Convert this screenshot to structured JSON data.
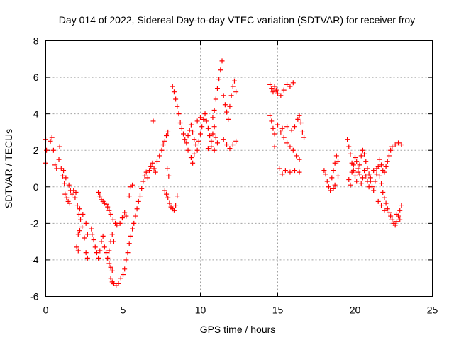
{
  "chart_data": {
    "type": "scatter",
    "title": "Day 014 of 2022, Sidereal Day-to-day VTEC variation (SDTVAR) for receiver froy",
    "xlabel": "GPS time / hours",
    "ylabel": "SDTVAR / TECUs",
    "xlim": [
      0,
      25
    ],
    "ylim": [
      -6,
      8
    ],
    "x_ticks": [
      0,
      5,
      10,
      15,
      20,
      25
    ],
    "x_tick_labels": [
      "0",
      "5",
      "10",
      "15",
      "20",
      "25"
    ],
    "y_ticks": [
      -6,
      -4,
      -2,
      0,
      2,
      4,
      6,
      8
    ],
    "y_tick_labels": [
      "-6",
      "-4",
      "-2",
      "0",
      "2",
      "4",
      "6",
      "8"
    ],
    "grid": true,
    "marker": "plus",
    "marker_color": "#ff0000",
    "series": [
      {
        "values_xy": [
          [
            0.0,
            2.6
          ],
          [
            0.0,
            1.3
          ],
          [
            0.05,
            2.0
          ],
          [
            0.3,
            2.5
          ],
          [
            0.4,
            2.7
          ],
          [
            0.5,
            2.0
          ],
          [
            0.6,
            1.2
          ],
          [
            0.7,
            1.0
          ],
          [
            0.85,
            1.5
          ],
          [
            0.9,
            2.2
          ],
          [
            1.0,
            1.0
          ],
          [
            1.1,
            0.6
          ],
          [
            1.2,
            0.2
          ],
          [
            1.25,
            -0.4
          ],
          [
            1.35,
            -0.6
          ],
          [
            1.45,
            -0.8
          ],
          [
            1.55,
            -0.9
          ],
          [
            1.7,
            -0.4
          ],
          [
            1.8,
            -0.2
          ],
          [
            1.95,
            -0.3
          ],
          [
            2.05,
            -1.0
          ],
          [
            2.15,
            -1.5
          ],
          [
            2.25,
            -1.8
          ],
          [
            2.35,
            -2.2
          ],
          [
            2.5,
            -2.8
          ],
          [
            2.6,
            -3.6
          ],
          [
            2.7,
            -3.9
          ],
          [
            2.2,
            -2.4
          ],
          [
            2.1,
            -2.6
          ],
          [
            2.0,
            -3.3
          ],
          [
            2.1,
            -3.5
          ],
          [
            1.15,
            0.9
          ],
          [
            1.3,
            0.5
          ],
          [
            1.5,
            0.1
          ],
          [
            1.6,
            -0.2
          ],
          [
            1.9,
            -0.6
          ],
          [
            2.2,
            -1.2
          ],
          [
            2.4,
            -1.5
          ],
          [
            2.6,
            -2.0
          ],
          [
            2.7,
            -2.6
          ],
          [
            3.2,
            -3.3
          ],
          [
            3.3,
            -3.6
          ],
          [
            3.4,
            -3.9
          ],
          [
            3.5,
            -3.5
          ],
          [
            3.6,
            -3.0
          ],
          [
            3.7,
            -2.7
          ],
          [
            3.8,
            -3.3
          ],
          [
            3.9,
            -3.6
          ],
          [
            4.0,
            -3.9
          ],
          [
            4.1,
            -4.2
          ],
          [
            4.2,
            -4.4
          ],
          [
            4.3,
            -4.6
          ],
          [
            4.1,
            -3.5
          ],
          [
            4.2,
            -3.0
          ],
          [
            4.3,
            -2.6
          ],
          [
            4.4,
            -3.0
          ],
          [
            3.0,
            -2.6
          ],
          [
            3.1,
            -2.9
          ],
          [
            2.95,
            -2.3
          ],
          [
            3.4,
            -0.3
          ],
          [
            3.5,
            -0.5
          ],
          [
            3.6,
            -0.7
          ],
          [
            3.7,
            -0.8
          ],
          [
            3.8,
            -0.9
          ],
          [
            3.9,
            -0.95
          ],
          [
            4.0,
            -1.1
          ],
          [
            4.1,
            -1.3
          ],
          [
            4.2,
            -1.5
          ],
          [
            4.35,
            -1.8
          ],
          [
            4.5,
            -2.0
          ],
          [
            4.6,
            -2.1
          ],
          [
            4.8,
            -2.0
          ],
          [
            4.95,
            -1.7
          ],
          [
            5.1,
            -1.4
          ],
          [
            5.2,
            -1.6
          ],
          [
            4.2,
            -5.0
          ],
          [
            4.3,
            -5.2
          ],
          [
            4.4,
            -5.3
          ],
          [
            4.55,
            -5.4
          ],
          [
            4.7,
            -5.3
          ],
          [
            4.85,
            -5.0
          ],
          [
            5.0,
            -4.8
          ],
          [
            5.1,
            -4.5
          ],
          [
            5.2,
            -4.0
          ],
          [
            5.3,
            -3.6
          ],
          [
            5.4,
            -3.1
          ],
          [
            5.5,
            -2.7
          ],
          [
            5.6,
            -2.3
          ],
          [
            5.7,
            -2.0
          ],
          [
            5.8,
            -1.6
          ],
          [
            5.9,
            -1.2
          ],
          [
            6.0,
            -0.8
          ],
          [
            6.1,
            -0.5
          ],
          [
            6.2,
            -0.1
          ],
          [
            6.3,
            0.3
          ],
          [
            6.4,
            0.6
          ],
          [
            6.5,
            0.8
          ],
          [
            6.6,
            0.5
          ],
          [
            6.7,
            0.9
          ],
          [
            6.8,
            1.1
          ],
          [
            6.9,
            1.3
          ],
          [
            7.0,
            1.0
          ],
          [
            7.1,
            0.8
          ],
          [
            5.5,
            0.0
          ],
          [
            5.6,
            0.1
          ],
          [
            5.4,
            -0.5
          ],
          [
            6.95,
            3.6
          ],
          [
            7.2,
            1.4
          ],
          [
            7.35,
            1.7
          ],
          [
            7.5,
            2.0
          ],
          [
            7.6,
            2.3
          ],
          [
            7.7,
            2.5
          ],
          [
            7.8,
            2.8
          ],
          [
            7.9,
            3.0
          ],
          [
            7.85,
            1.0
          ],
          [
            7.95,
            0.6
          ],
          [
            7.7,
            -0.2
          ],
          [
            7.8,
            -0.4
          ],
          [
            7.9,
            -0.6
          ],
          [
            8.0,
            -0.9
          ],
          [
            8.1,
            -1.1
          ],
          [
            8.2,
            -1.2
          ],
          [
            8.3,
            -1.3
          ],
          [
            8.4,
            -1.0
          ],
          [
            8.5,
            -0.5
          ],
          [
            8.2,
            5.5
          ],
          [
            8.3,
            5.2
          ],
          [
            8.4,
            4.8
          ],
          [
            8.5,
            4.4
          ],
          [
            8.6,
            4.0
          ],
          [
            8.7,
            3.5
          ],
          [
            8.8,
            3.2
          ],
          [
            8.9,
            2.9
          ],
          [
            9.0,
            2.6
          ],
          [
            9.1,
            2.4
          ],
          [
            9.2,
            2.8
          ],
          [
            9.3,
            3.1
          ],
          [
            9.4,
            3.4
          ],
          [
            9.5,
            3.0
          ],
          [
            9.6,
            2.6
          ],
          [
            9.7,
            2.3
          ],
          [
            9.8,
            2.0
          ],
          [
            9.9,
            2.5
          ],
          [
            10.0,
            2.9
          ],
          [
            10.1,
            3.3
          ],
          [
            10.2,
            3.7
          ],
          [
            10.3,
            4.0
          ],
          [
            10.4,
            3.6
          ],
          [
            10.5,
            3.2
          ],
          [
            10.6,
            2.8
          ],
          [
            10.7,
            2.5
          ],
          [
            10.8,
            2.9
          ],
          [
            10.9,
            3.3
          ],
          [
            11.0,
            2.7
          ],
          [
            11.1,
            2.4
          ],
          [
            9.2,
            2.0
          ],
          [
            9.4,
            1.6
          ],
          [
            9.5,
            1.3
          ],
          [
            9.6,
            1.8
          ],
          [
            9.8,
            3.6
          ],
          [
            10.0,
            3.8
          ],
          [
            10.5,
            2.1
          ],
          [
            10.7,
            2.2
          ],
          [
            10.9,
            2.0
          ],
          [
            10.8,
            3.8
          ],
          [
            10.9,
            4.2
          ],
          [
            11.0,
            4.8
          ],
          [
            11.1,
            5.4
          ],
          [
            11.2,
            5.9
          ],
          [
            11.3,
            6.4
          ],
          [
            11.4,
            6.9
          ],
          [
            11.5,
            5.0
          ],
          [
            11.6,
            4.5
          ],
          [
            11.7,
            4.1
          ],
          [
            11.8,
            3.7
          ],
          [
            11.9,
            4.4
          ],
          [
            12.0,
            5.0
          ],
          [
            12.1,
            5.5
          ],
          [
            12.2,
            5.8
          ],
          [
            12.3,
            5.2
          ],
          [
            11.5,
            2.6
          ],
          [
            11.7,
            2.3
          ],
          [
            11.9,
            2.1
          ],
          [
            12.1,
            2.3
          ],
          [
            12.3,
            2.5
          ],
          [
            14.5,
            5.6
          ],
          [
            14.6,
            5.4
          ],
          [
            14.7,
            5.2
          ],
          [
            14.8,
            5.5
          ],
          [
            14.9,
            5.3
          ],
          [
            15.0,
            5.1
          ],
          [
            15.2,
            5.0
          ],
          [
            15.4,
            5.3
          ],
          [
            15.6,
            5.6
          ],
          [
            15.8,
            5.5
          ],
          [
            16.0,
            5.7
          ],
          [
            14.5,
            3.9
          ],
          [
            14.6,
            3.6
          ],
          [
            14.7,
            3.2
          ],
          [
            14.8,
            2.9
          ],
          [
            15.0,
            3.4
          ],
          [
            15.2,
            3.0
          ],
          [
            15.4,
            2.7
          ],
          [
            15.6,
            2.4
          ],
          [
            15.8,
            2.2
          ],
          [
            16.0,
            2.0
          ],
          [
            16.2,
            1.7
          ],
          [
            16.4,
            1.5
          ],
          [
            14.8,
            2.2
          ],
          [
            15.1,
            1.0
          ],
          [
            15.3,
            0.7
          ],
          [
            15.5,
            0.9
          ],
          [
            15.8,
            0.8
          ],
          [
            16.1,
            0.9
          ],
          [
            16.4,
            0.8
          ],
          [
            15.3,
            3.2
          ],
          [
            15.6,
            3.3
          ],
          [
            15.9,
            3.1
          ],
          [
            16.1,
            3.3
          ],
          [
            16.3,
            3.7
          ],
          [
            16.4,
            3.9
          ],
          [
            16.5,
            3.5
          ],
          [
            16.6,
            3.0
          ],
          [
            16.7,
            2.7
          ],
          [
            18.0,
            0.9
          ],
          [
            18.1,
            0.7
          ],
          [
            18.2,
            0.3
          ],
          [
            18.3,
            0.0
          ],
          [
            18.4,
            -0.2
          ],
          [
            18.5,
            0.5
          ],
          [
            18.6,
            0.9
          ],
          [
            18.7,
            1.3
          ],
          [
            18.8,
            1.7
          ],
          [
            18.9,
            1.4
          ],
          [
            18.9,
            0.6
          ],
          [
            18.7,
            0.1
          ],
          [
            18.6,
            -0.1
          ],
          [
            19.5,
            2.6
          ],
          [
            19.6,
            2.2
          ],
          [
            19.7,
            1.8
          ],
          [
            19.8,
            1.3
          ],
          [
            19.9,
            0.9
          ],
          [
            20.0,
            0.6
          ],
          [
            20.1,
            0.3
          ],
          [
            20.2,
            0.8
          ],
          [
            20.3,
            1.2
          ],
          [
            20.4,
            1.7
          ],
          [
            20.5,
            2.0
          ],
          [
            20.6,
            1.8
          ],
          [
            20.7,
            1.4
          ],
          [
            20.8,
            1.0
          ],
          [
            20.9,
            0.7
          ],
          [
            21.0,
            0.3
          ],
          [
            21.1,
            0.0
          ],
          [
            21.2,
            -0.2
          ],
          [
            21.3,
            0.3
          ],
          [
            21.4,
            0.7
          ],
          [
            21.5,
            1.1
          ],
          [
            21.6,
            1.5
          ],
          [
            21.7,
            1.2
          ],
          [
            21.8,
            0.9
          ],
          [
            21.9,
            0.8
          ],
          [
            22.0,
            1.1
          ],
          [
            22.1,
            1.4
          ],
          [
            22.2,
            1.7
          ],
          [
            22.3,
            2.0
          ],
          [
            22.4,
            2.2
          ],
          [
            22.6,
            2.3
          ],
          [
            22.8,
            2.4
          ],
          [
            23.0,
            2.3
          ],
          [
            19.6,
            0.4
          ],
          [
            19.7,
            0.1
          ],
          [
            19.8,
            0.8
          ],
          [
            19.9,
            1.2
          ],
          [
            20.0,
            1.6
          ],
          [
            20.1,
            1.4
          ],
          [
            20.2,
            1.0
          ],
          [
            20.3,
            0.7
          ],
          [
            20.4,
            0.2
          ],
          [
            20.5,
            0.5
          ],
          [
            20.6,
            0.9
          ],
          [
            20.7,
            0.6
          ],
          [
            20.8,
            0.3
          ],
          [
            20.9,
            0.0
          ],
          [
            21.0,
            0.5
          ],
          [
            21.2,
            0.9
          ],
          [
            21.4,
            1.0
          ],
          [
            21.6,
            0.6
          ],
          [
            21.7,
            0.2
          ],
          [
            21.8,
            -0.3
          ],
          [
            21.9,
            -0.6
          ],
          [
            22.0,
            -0.9
          ],
          [
            22.1,
            -1.2
          ],
          [
            22.2,
            -1.4
          ],
          [
            22.3,
            -1.6
          ],
          [
            22.4,
            -1.8
          ],
          [
            22.5,
            -2.0
          ],
          [
            22.6,
            -2.1
          ],
          [
            22.7,
            -1.9
          ],
          [
            22.8,
            -1.6
          ],
          [
            22.9,
            -1.3
          ],
          [
            23.0,
            -1.0
          ],
          [
            22.7,
            -1.5
          ],
          [
            22.9,
            -1.8
          ],
          [
            21.5,
            -0.8
          ],
          [
            21.7,
            -1.0
          ],
          [
            21.9,
            -1.3
          ]
        ]
      }
    ]
  }
}
